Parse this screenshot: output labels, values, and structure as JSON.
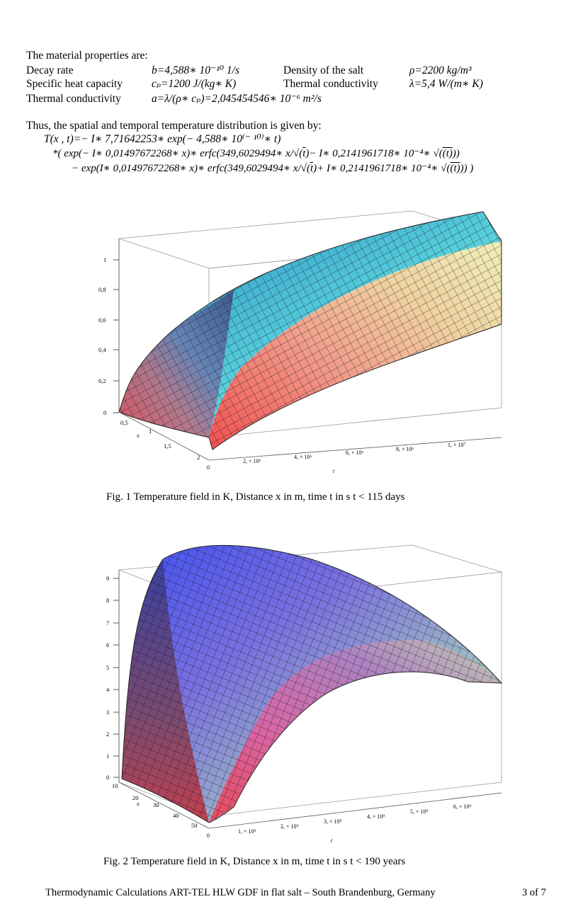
{
  "intro": "The material properties are:",
  "props": {
    "decay_label": "Decay rate",
    "decay_value": "b=4,588∗ 10⁻¹⁰ 1/s",
    "density_label": "Density of the salt",
    "density_value": "ρ=2200 kg/m³",
    "heat_label": "Specific heat capacity",
    "heat_value": "cₚ=1200 J/(kg∗ K)",
    "cond_label": "Thermal conductivity",
    "cond_value": "λ=5,4 W/(m∗ K)",
    "diff_label": "Thermal conductivity",
    "diff_value": "a=λ/(ρ∗ cₚ)=2,045454546∗ 10⁻⁶ m²/s"
  },
  "dist_intro": "Thus, the spatial and temporal temperature distribution is given by:",
  "formula": {
    "line1": "T(x , t)=− I∗ 7,71642253∗ exp(− 4,588∗ 10⁽⁻ ¹⁰⁾∗ t)",
    "line2a": "*(  exp(− I∗ 0,01497672268∗ x)∗ erfc(349,6029494∗ x/√(",
    "line2b": "t",
    "line2c": ")− I∗ 0,2141961718∗ 10⁻⁴∗ √(",
    "line2d": "(t)",
    "line2e": "))",
    "line3a": "− exp(I∗ 0,01497672268∗ x)∗ erfc(349,6029494∗ x/√(",
    "line3b": "t",
    "line3c": ")+ I∗ 0,2141961718∗ 10⁻⁴∗ √(",
    "line3d": "(t)",
    "line3e": "))  )"
  },
  "fig1": {
    "caption": "Fig. 1 Temperature field in K, Distance x in m, time t in s  t < 115 days",
    "z_ticks": [
      "0",
      "0,2",
      "0,4",
      "0,6",
      "0,8",
      "1"
    ],
    "x_ticks": [
      "0,5",
      "1",
      "1,5",
      "2"
    ],
    "x_label": "x",
    "t_ticks": [
      "0",
      "2, × 10⁶",
      "4, × 10⁶",
      "6, × 10⁶",
      "8, × 10⁶",
      "1, × 10⁷"
    ],
    "t_label": "t"
  },
  "fig2": {
    "caption": "Fig. 2 Temperature field in K, Distance x in m, time t in s  t < 190 years",
    "z_ticks": [
      "0",
      "1",
      "2",
      "3",
      "4",
      "5",
      "6",
      "7",
      "8",
      "9"
    ],
    "x_ticks": [
      "10",
      "20",
      "30",
      "40",
      "50"
    ],
    "x_label": "x",
    "t_ticks": [
      "0",
      "1, × 10⁹",
      "2, × 10⁹",
      "3, × 10⁹",
      "4, × 10⁹",
      "5, × 10⁹",
      "6, × 10⁹"
    ],
    "t_label": "t"
  },
  "footer": {
    "text": "Thermodynamic Calculations ART-TEL  HLW  GDF in flat salt – South Brandenburg, Germany",
    "page": "3 of 7"
  }
}
